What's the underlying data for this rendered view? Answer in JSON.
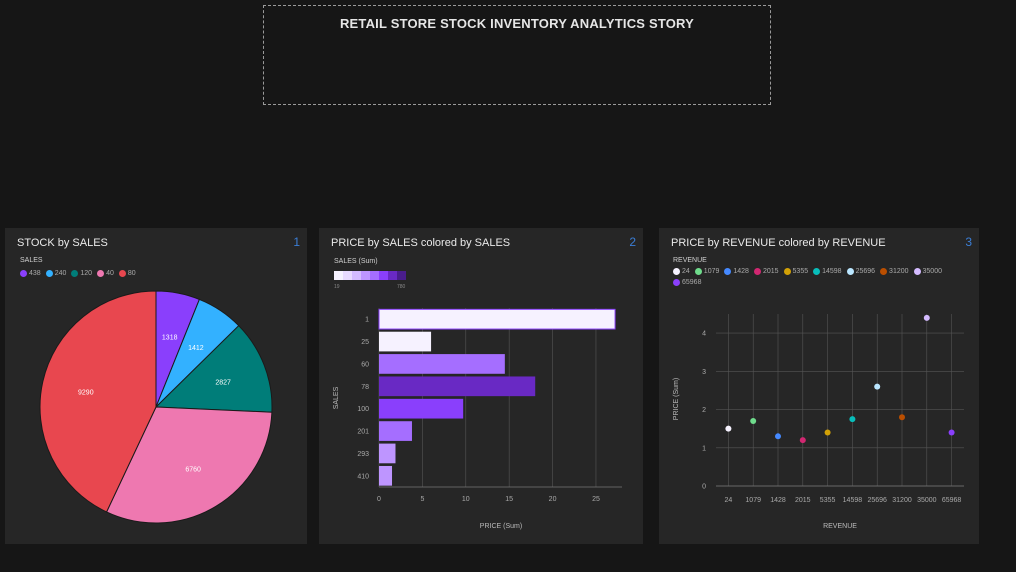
{
  "story_title": "RETAIL STORE STOCK INVENTORY ANALYTICS  STORY",
  "cards": [
    {
      "title": "STOCK by SALES",
      "number": "1"
    },
    {
      "title": "PRICE by SALES colored by SALES",
      "number": "2"
    },
    {
      "title": "PRICE by REVENUE colored by REVENUE",
      "number": "3"
    }
  ],
  "legends": {
    "pie": {
      "title": "SALES",
      "items": [
        {
          "label": "438",
          "color": "#8a3ffc"
        },
        {
          "label": "240",
          "color": "#33b1ff"
        },
        {
          "label": "120",
          "color": "#007d79"
        },
        {
          "label": "40",
          "color": "#ee78b0"
        },
        {
          "label": "80",
          "color": "#e8474f"
        }
      ]
    },
    "bar": {
      "title": "SALES (Sum)",
      "min": "19",
      "max": "780",
      "swatches": [
        "#f6f2ff",
        "#e8daff",
        "#d4bbff",
        "#be95ff",
        "#a56eff",
        "#8a3ffc",
        "#6929c4",
        "#491d8b"
      ]
    },
    "scatter": {
      "title": "REVENUE",
      "items": [
        {
          "label": "24",
          "color": "#f6f2ff"
        },
        {
          "label": "1079",
          "color": "#6fdc8c"
        },
        {
          "label": "1428",
          "color": "#4589ff"
        },
        {
          "label": "2015",
          "color": "#d12771"
        },
        {
          "label": "5355",
          "color": "#d2a106"
        },
        {
          "label": "14598",
          "color": "#08bdba"
        },
        {
          "label": "25696",
          "color": "#bae6ff"
        },
        {
          "label": "31200",
          "color": "#ba4e00"
        },
        {
          "label": "35000",
          "color": "#d4bbff"
        },
        {
          "label": "65968",
          "color": "#8a3ffc"
        }
      ]
    }
  },
  "chart_data": [
    {
      "type": "pie",
      "title": "STOCK by SALES",
      "categories": [
        "438",
        "240",
        "120",
        "40",
        "80"
      ],
      "values": [
        1318,
        1412,
        2827,
        6760,
        9290
      ],
      "colors": [
        "#8a3ffc",
        "#33b1ff",
        "#007d79",
        "#ee78b0",
        "#e8474f"
      ]
    },
    {
      "type": "bar",
      "title": "PRICE by SALES colored by SALES",
      "categories": [
        "1",
        "25",
        "60",
        "78",
        "100",
        "201",
        "293",
        "410"
      ],
      "values": [
        27.2,
        6,
        14.5,
        18,
        9.7,
        3.8,
        1.9,
        1.5
      ],
      "colors": [
        "#f6f2ff",
        "#f6f2ff",
        "#a56eff",
        "#6929c4",
        "#8a3ffc",
        "#a56eff",
        "#be95ff",
        "#be95ff"
      ],
      "xlabel": "PRICE (Sum)",
      "ylabel": "SALES",
      "xticks": [
        "0",
        "5",
        "10",
        "15",
        "20",
        "25"
      ],
      "xlim": [
        0,
        28
      ]
    },
    {
      "type": "scatter",
      "title": "PRICE by REVENUE colored by REVENUE",
      "categories": [
        "24",
        "1079",
        "1428",
        "2015",
        "5355",
        "14598",
        "25696",
        "31200",
        "35000",
        "65968"
      ],
      "values": [
        1.5,
        1.7,
        1.3,
        1.2,
        1.4,
        1.75,
        2.6,
        1.8,
        4.4,
        1.4
      ],
      "colors": [
        "#f6f2ff",
        "#6fdc8c",
        "#4589ff",
        "#d12771",
        "#d2a106",
        "#08bdba",
        "#bae6ff",
        "#ba4e00",
        "#d4bbff",
        "#8a3ffc"
      ],
      "xlabel": "REVENUE",
      "ylabel": "PRICE (Sum)",
      "yticks": [
        "0",
        "1",
        "2",
        "3",
        "4"
      ],
      "ylim": [
        0,
        4.5
      ]
    }
  ]
}
